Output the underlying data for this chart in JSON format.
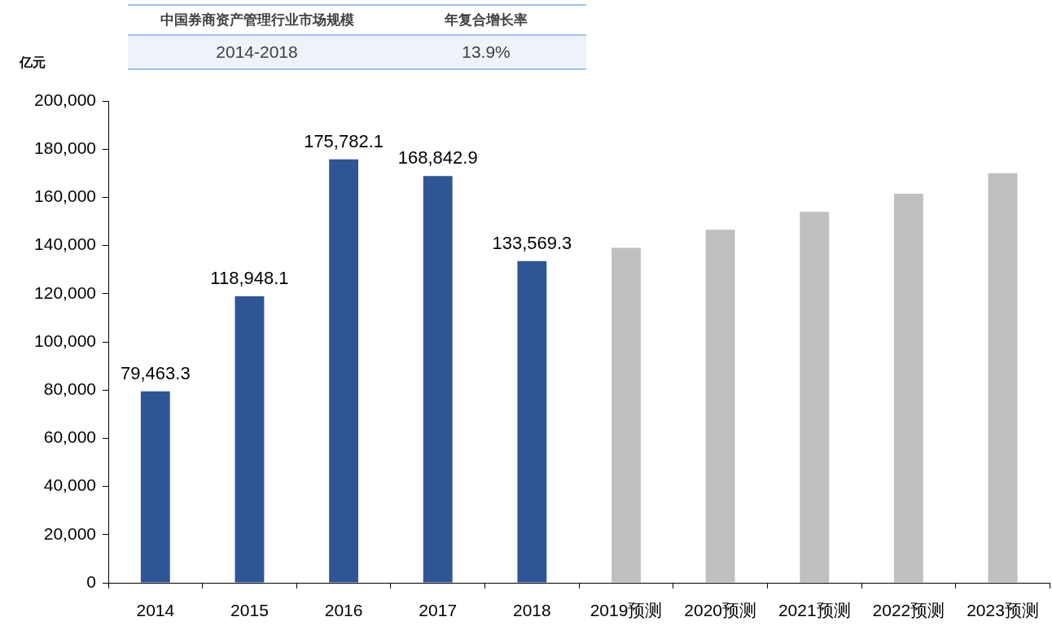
{
  "chart_data": {
    "type": "bar",
    "categories": [
      "2014",
      "2015",
      "2016",
      "2017",
      "2018",
      "2019预测",
      "2020预测",
      "2021预测",
      "2022预测",
      "2023预测"
    ],
    "values": [
      79463.3,
      118948.1,
      175782.1,
      168842.9,
      133569.3,
      139000,
      146500,
      154000,
      161500,
      170000
    ],
    "colors": [
      "#2f5597",
      "#2f5597",
      "#2f5597",
      "#2f5597",
      "#2f5597",
      "#bfbfbf",
      "#bfbfbf",
      "#bfbfbf",
      "#bfbfbf",
      "#bfbfbf"
    ],
    "value_labels": [
      "79,463.3",
      "118,948.1",
      "175,782.1",
      "168,842.9",
      "133,569.3",
      null,
      null,
      null,
      null,
      null
    ],
    "ylabel": "亿元",
    "ylim": [
      0,
      200000
    ],
    "yticks": [
      {
        "value": 0,
        "label": "0"
      },
      {
        "value": 20000,
        "label": "20,000"
      },
      {
        "value": 40000,
        "label": "40,000"
      },
      {
        "value": 60000,
        "label": "60,000"
      },
      {
        "value": 80000,
        "label": "80,000"
      },
      {
        "value": 100000,
        "label": "100,000"
      },
      {
        "value": 120000,
        "label": "120,000"
      },
      {
        "value": 140000,
        "label": "140,000"
      },
      {
        "value": 160000,
        "label": "160,000"
      },
      {
        "value": 180000,
        "label": "180,000"
      },
      {
        "value": 200000,
        "label": "200,000"
      }
    ],
    "annotations": [
      "中国券商资产管理行业市场规模",
      "年复合增长率",
      "2014-2018",
      "13.9%"
    ]
  }
}
